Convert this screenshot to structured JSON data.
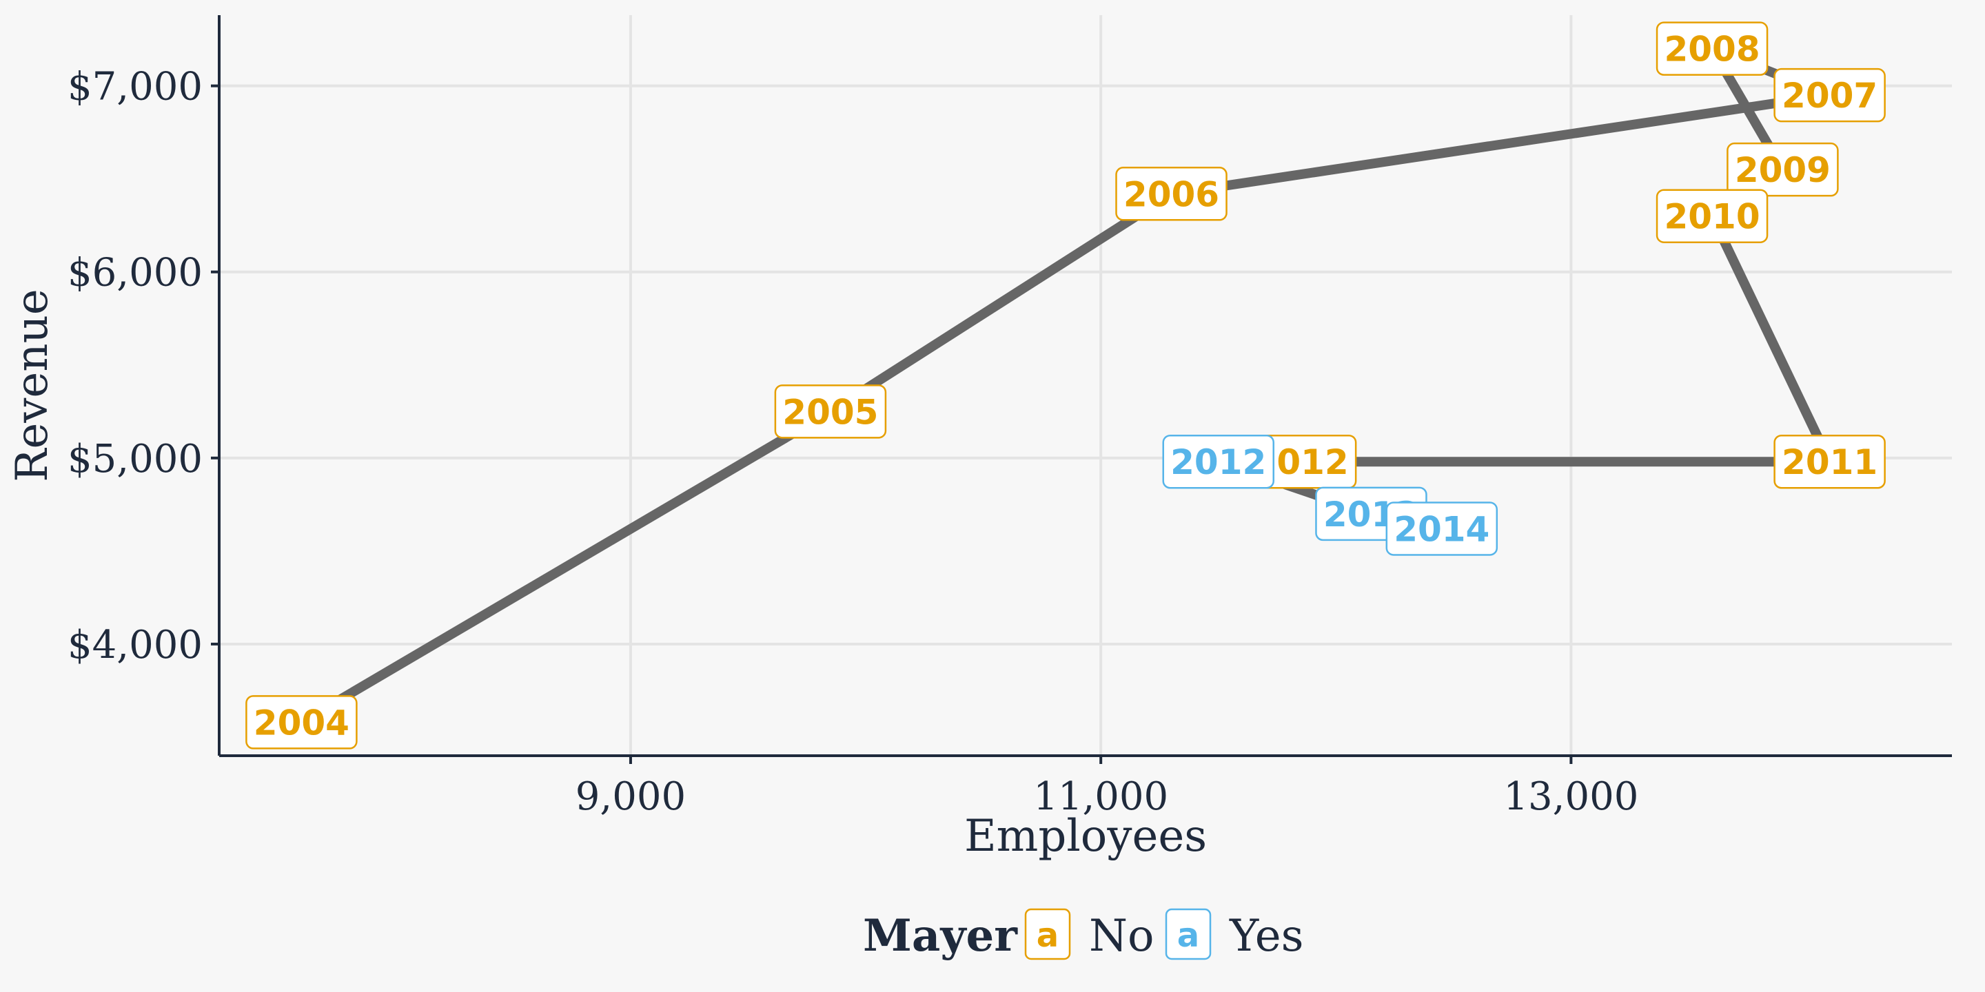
{
  "chart_data": {
    "type": "line",
    "title": "",
    "xlabel": "Employees",
    "ylabel": "Revenue",
    "xlim": [
      7250,
      14620
    ],
    "ylim": [
      3400,
      7380
    ],
    "x_ticks": [
      {
        "value": 9000,
        "label": "9,000"
      },
      {
        "value": 11000,
        "label": "11,000"
      },
      {
        "value": 13000,
        "label": "13,000"
      }
    ],
    "y_ticks": [
      {
        "value": 4000,
        "label": "$4,000"
      },
      {
        "value": 5000,
        "label": "$5,000"
      },
      {
        "value": 6000,
        "label": "$6,000"
      },
      {
        "value": 7000,
        "label": "$7,000"
      }
    ],
    "grid": true,
    "line_color": "#666666",
    "points": [
      {
        "label": "2004",
        "x": 7600,
        "y": 3580,
        "mayer": "No"
      },
      {
        "label": "2005",
        "x": 9850,
        "y": 5250,
        "mayer": "No"
      },
      {
        "label": "2006",
        "x": 11300,
        "y": 6420,
        "mayer": "No"
      },
      {
        "label": "2007",
        "x": 14100,
        "y": 6950,
        "mayer": "No"
      },
      {
        "label": "2008",
        "x": 13600,
        "y": 7200,
        "mayer": "No"
      },
      {
        "label": "2009",
        "x": 13900,
        "y": 6550,
        "mayer": "No"
      },
      {
        "label": "2010",
        "x": 13600,
        "y": 6300,
        "mayer": "No"
      },
      {
        "label": "2011",
        "x": 14100,
        "y": 4980,
        "mayer": "No"
      },
      {
        "label": "2012",
        "x": 11850,
        "y": 4980,
        "mayer": "No"
      },
      {
        "label": "2012",
        "x": 11500,
        "y": 4980,
        "mayer": "Yes"
      },
      {
        "label": "2013",
        "x": 12150,
        "y": 4700,
        "mayer": "Yes"
      },
      {
        "label": "2014",
        "x": 12450,
        "y": 4620,
        "mayer": "Yes"
      }
    ],
    "legend": {
      "title": "Mayer",
      "position": "bottom",
      "symbol": "a",
      "items": [
        {
          "name": "No",
          "color": "#e69f00"
        },
        {
          "name": "Yes",
          "color": "#56b4e9"
        }
      ]
    }
  }
}
